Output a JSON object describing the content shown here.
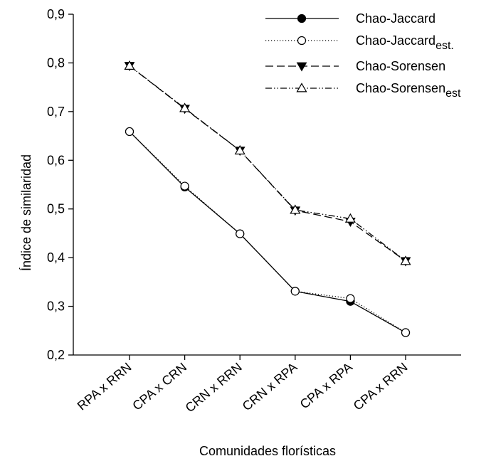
{
  "chart_data": {
    "type": "line",
    "title": "",
    "xlabel": "Comunidades florísticas",
    "ylabel": "Índice de similaridad",
    "categories": [
      "RPA x RRN",
      "CPA x CRN",
      "CRN x RRN",
      "CRN x RPA",
      "CPA x RPA",
      "CPA x RRN"
    ],
    "ylim": [
      0.2,
      0.9
    ],
    "yticks": [
      0.2,
      0.3,
      0.4,
      0.5,
      0.6,
      0.7,
      0.8,
      0.9
    ],
    "ytick_labels": [
      "0,2",
      "0,3",
      "0,4",
      "0,5",
      "0,6",
      "0,7",
      "0,8",
      "0,9"
    ],
    "grid": false,
    "legend_position": "top-right",
    "series": [
      {
        "name": "Chao-Jaccard",
        "name_base": "Chao-Jaccard",
        "name_sub": "",
        "values": [
          0.659,
          0.545,
          0.449,
          0.331,
          0.31,
          0.246
        ],
        "line": "solid",
        "marker": "circle-filled"
      },
      {
        "name": "Chao-Jaccardest.",
        "name_base": "Chao-Jaccard",
        "name_sub": "est.",
        "values": [
          0.659,
          0.547,
          0.449,
          0.331,
          0.316,
          0.246
        ],
        "line": "dotted",
        "marker": "circle-open"
      },
      {
        "name": "Chao-Sorensen",
        "name_base": "Chao-Sorensen",
        "name_sub": "",
        "values": [
          0.794,
          0.706,
          0.62,
          0.497,
          0.474,
          0.393
        ],
        "line": "dashed",
        "marker": "triangle-down-filled"
      },
      {
        "name": "Chao-Sorensenest",
        "name_base": "Chao-Sorensen",
        "name_sub": "est",
        "values": [
          0.794,
          0.707,
          0.62,
          0.498,
          0.48,
          0.393
        ],
        "line": "dash-dot-dot",
        "marker": "triangle-up-open"
      }
    ]
  }
}
